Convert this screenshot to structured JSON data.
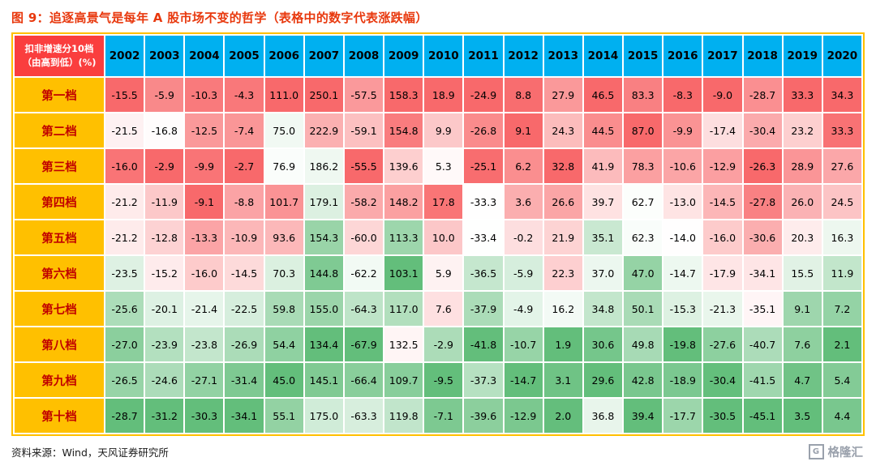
{
  "title": "图 9：追逐高景气是每年 A 股市场不变的哲学（表格中的数字代表涨跌幅）",
  "source": "资料来源：Wind，天风证券研究所",
  "logo": {
    "icon_letter": "G",
    "text": "格隆汇"
  },
  "colors": {
    "title": "#e8380d",
    "year_header_bg": "#00b0f0",
    "corner_bg": "#fa3e3e",
    "label_bg": "#ffc000",
    "label_text": "#c00000",
    "table_frame": "#ffc000",
    "logo": "#9aa1ac",
    "heat_max": "#f8696b",
    "heat_mid": "#ffffff",
    "heat_min": "#63be7b"
  },
  "chart_data": {
    "type": "heatmap",
    "title": "图 9：追逐高景气是每年 A 股市场不变的哲学（表格中的数字代表涨跌幅）",
    "unit": "%",
    "row_header": "扣非增速分10档\n（由高到低）(%)",
    "columns": [
      "2002",
      "2003",
      "2004",
      "2005",
      "2006",
      "2007",
      "2008",
      "2009",
      "2010",
      "2011",
      "2012",
      "2013",
      "2014",
      "2015",
      "2016",
      "2017",
      "2018",
      "2019",
      "2020"
    ],
    "rows": [
      {
        "label": "第一档",
        "values": [
          -15.5,
          -5.9,
          -10.3,
          -4.3,
          111.0,
          250.1,
          -57.5,
          158.3,
          18.9,
          -24.9,
          8.8,
          27.9,
          46.5,
          83.3,
          -8.3,
          -9.0,
          -28.7,
          33.3,
          34.3
        ]
      },
      {
        "label": "第二档",
        "values": [
          -21.5,
          -16.8,
          -12.5,
          -7.4,
          75.0,
          222.9,
          -59.1,
          154.8,
          9.9,
          -26.8,
          9.1,
          24.3,
          44.5,
          87.0,
          -9.9,
          -17.4,
          -30.4,
          23.2,
          33.3
        ]
      },
      {
        "label": "第三档",
        "values": [
          -16.0,
          -2.9,
          -9.9,
          -2.7,
          76.9,
          186.2,
          -55.5,
          139.6,
          5.3,
          -25.1,
          6.2,
          32.8,
          41.9,
          78.3,
          -10.6,
          -12.9,
          -26.3,
          28.9,
          27.6
        ]
      },
      {
        "label": "第四档",
        "values": [
          -21.2,
          -11.9,
          -9.1,
          -8.8,
          101.7,
          179.1,
          -58.2,
          148.2,
          17.8,
          -33.3,
          3.6,
          26.6,
          39.7,
          62.7,
          -13.0,
          -14.5,
          -27.8,
          26.0,
          24.5
        ]
      },
      {
        "label": "第五档",
        "values": [
          -21.2,
          -12.8,
          -13.3,
          -10.9,
          93.6,
          154.3,
          -60.0,
          113.3,
          10.0,
          -33.4,
          -0.2,
          21.9,
          35.1,
          62.3,
          -14.0,
          -16.0,
          -30.6,
          20.3,
          16.3
        ]
      },
      {
        "label": "第六档",
        "values": [
          -23.5,
          -15.2,
          -16.0,
          -14.5,
          70.3,
          144.8,
          -62.2,
          103.1,
          5.9,
          -36.5,
          -5.9,
          22.3,
          37.0,
          47.0,
          -14.7,
          -17.9,
          -34.1,
          15.5,
          11.9
        ]
      },
      {
        "label": "第七档",
        "values": [
          -25.6,
          -20.1,
          -21.4,
          -22.5,
          59.8,
          155.0,
          -64.3,
          117.0,
          7.6,
          -37.9,
          -4.9,
          16.2,
          34.8,
          50.1,
          -15.3,
          -21.3,
          -35.1,
          9.1,
          7.2
        ]
      },
      {
        "label": "第八档",
        "values": [
          -27.0,
          -23.9,
          -23.8,
          -26.9,
          54.4,
          134.4,
          -67.9,
          132.5,
          -2.9,
          -41.8,
          -10.7,
          1.9,
          30.6,
          49.8,
          -19.8,
          -27.6,
          -40.7,
          7.6,
          2.1
        ]
      },
      {
        "label": "第九档",
        "values": [
          -26.5,
          -24.6,
          -27.1,
          -31.4,
          45.0,
          145.1,
          -66.4,
          109.7,
          -9.5,
          -37.3,
          -14.7,
          3.1,
          29.6,
          42.8,
          -18.9,
          -30.4,
          -41.5,
          4.7,
          5.4
        ]
      },
      {
        "label": "第十档",
        "values": [
          -28.7,
          -31.2,
          -30.3,
          -34.1,
          55.1,
          175.0,
          -63.3,
          119.8,
          -7.1,
          -39.6,
          -12.9,
          2.0,
          36.8,
          39.4,
          -17.7,
          -30.5,
          -45.1,
          3.5,
          4.4
        ]
      }
    ],
    "color_scale": {
      "mode": "per-column",
      "max": "#f8696b",
      "mid": "#ffffff",
      "min": "#63be7b"
    },
    "legend_position": "none",
    "grid": false
  }
}
